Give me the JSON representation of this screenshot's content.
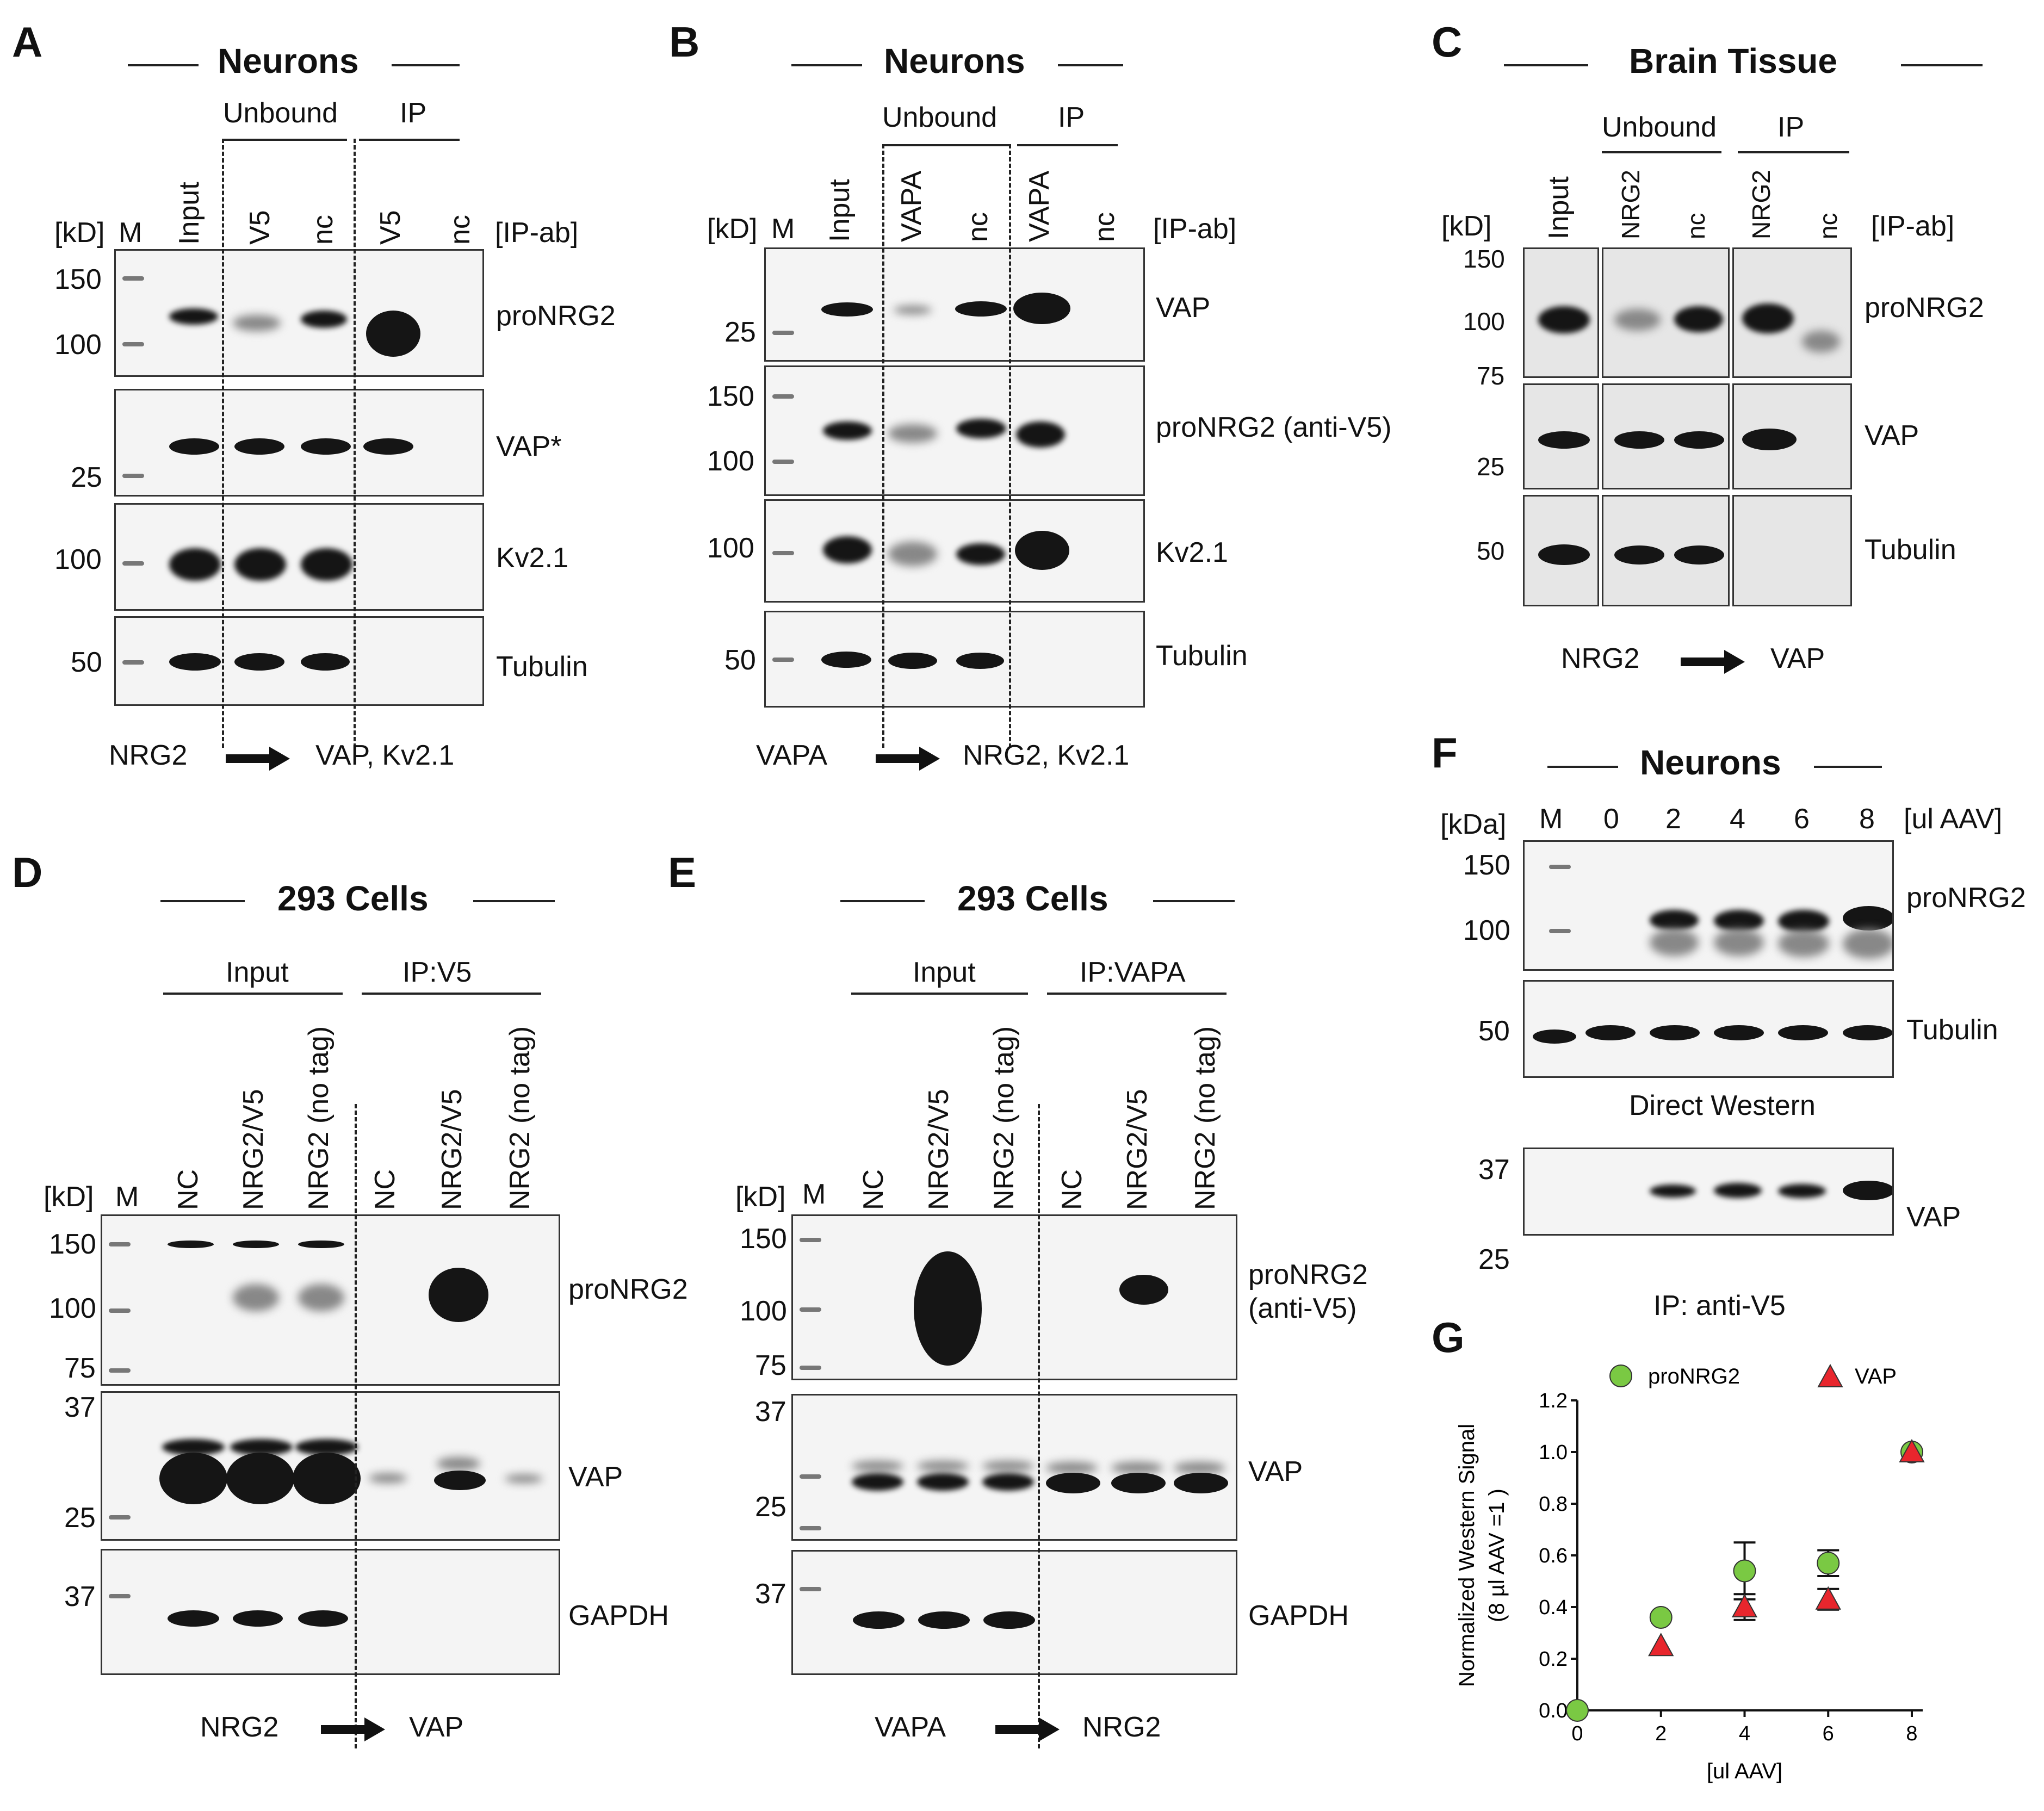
{
  "figure": {
    "panels": {
      "A": "A",
      "B": "B",
      "C": "C",
      "D": "D",
      "E": "E",
      "F": "F",
      "G": "G"
    },
    "common": {
      "neurons": "Neurons",
      "brain": "Brain Tissue",
      "cells293": "293 Cells",
      "unbound": "Unbound",
      "ip": "IP",
      "input": "Input",
      "ipab": "[IP-ab]",
      "kd": "[kD]",
      "kda": "[kDa]",
      "m": "M",
      "nc": "nc",
      "NC": "NC"
    },
    "A": {
      "lanes": [
        "Input",
        "V5",
        "nc",
        "V5",
        "nc"
      ],
      "mw": [
        "150",
        "100",
        "25",
        "100",
        "50"
      ],
      "blots": [
        "proNRG2",
        "VAP*",
        "Kv2.1",
        "Tubulin"
      ],
      "footer_left": "NRG2",
      "footer_right": "VAP, Kv2.1"
    },
    "B": {
      "lanes": [
        "Input",
        "VAPA",
        "nc",
        "VAPA",
        "nc"
      ],
      "mw": [
        "25",
        "150",
        "100",
        "100",
        "50"
      ],
      "blots": [
        "VAP",
        "proNRG2 (anti-V5)",
        "Kv2.1",
        "Tubulin"
      ],
      "footer_left": "VAPA",
      "footer_right": "NRG2, Kv2.1"
    },
    "C": {
      "lanes": [
        "Input",
        "NRG2",
        "nc",
        "NRG2",
        "nc"
      ],
      "mw": [
        "150",
        "100",
        "75",
        "25",
        "50"
      ],
      "blots": [
        "proNRG2",
        "VAP",
        "Tubulin"
      ],
      "footer_left": "NRG2",
      "footer_right": "VAP"
    },
    "D": {
      "group_input": "Input",
      "group_ip": "IP:V5",
      "lanes": [
        "NC",
        "NRG2/V5",
        "NRG2 (no tag)",
        "NC",
        "NRG2/V5",
        "NRG2 (no tag)"
      ],
      "mw": [
        "150",
        "100",
        "75",
        "37",
        "25",
        "37"
      ],
      "blots": [
        "proNRG2",
        "VAP",
        "GAPDH"
      ],
      "footer_left": "NRG2",
      "footer_right": "VAP"
    },
    "E": {
      "group_input": "Input",
      "group_ip": "IP:VAPA",
      "lanes": [
        "NC",
        "NRG2/V5",
        "NRG2 (no tag)",
        "NC",
        "NRG2/V5",
        "NRG2 (no tag)"
      ],
      "mw": [
        "150",
        "100",
        "75",
        "37",
        "25",
        "37"
      ],
      "blots": [
        "proNRG2",
        "(anti-V5)",
        "VAP",
        "GAPDH"
      ],
      "footer_left": "VAPA",
      "footer_right": "NRG2"
    },
    "F": {
      "lanes": [
        "M",
        "0",
        "2",
        "4",
        "6",
        "8"
      ],
      "unit": "[ul AAV]",
      "mw": [
        "150",
        "100",
        "50",
        "37",
        "25"
      ],
      "blots": [
        "proNRG2",
        "Tubulin",
        "VAP"
      ],
      "caption_direct": "Direct Western",
      "caption_ip": "IP: anti-V5"
    }
  },
  "chart_data": {
    "type": "scatter",
    "title": "",
    "xlabel": "[ul AAV]",
    "ylabel_line1": "Normalized Western Signal",
    "ylabel_line2": "(8 µl AAV =1 )",
    "xlim": [
      0,
      8
    ],
    "ylim": [
      0,
      1.2
    ],
    "xticks": [
      "0",
      "2",
      "4",
      "6",
      "8"
    ],
    "yticks": [
      "0.0",
      "0.2",
      "0.4",
      "0.6",
      "0.8",
      "1.0",
      "1.2"
    ],
    "legend_position": "top",
    "series": [
      {
        "name": "proNRG2",
        "color": "#7ac943",
        "marker": "circle",
        "x": [
          0,
          2,
          4,
          6,
          8
        ],
        "y": [
          0,
          0.36,
          0.54,
          0.57,
          1.0
        ],
        "err": [
          0,
          0,
          0.11,
          0.05,
          0
        ]
      },
      {
        "name": "VAP",
        "color": "#e8262d",
        "marker": "triangle",
        "x": [
          2,
          4,
          6,
          8
        ],
        "y": [
          0.25,
          0.4,
          0.43,
          1.0
        ],
        "err": [
          0,
          0.05,
          0.04,
          0
        ]
      }
    ]
  }
}
